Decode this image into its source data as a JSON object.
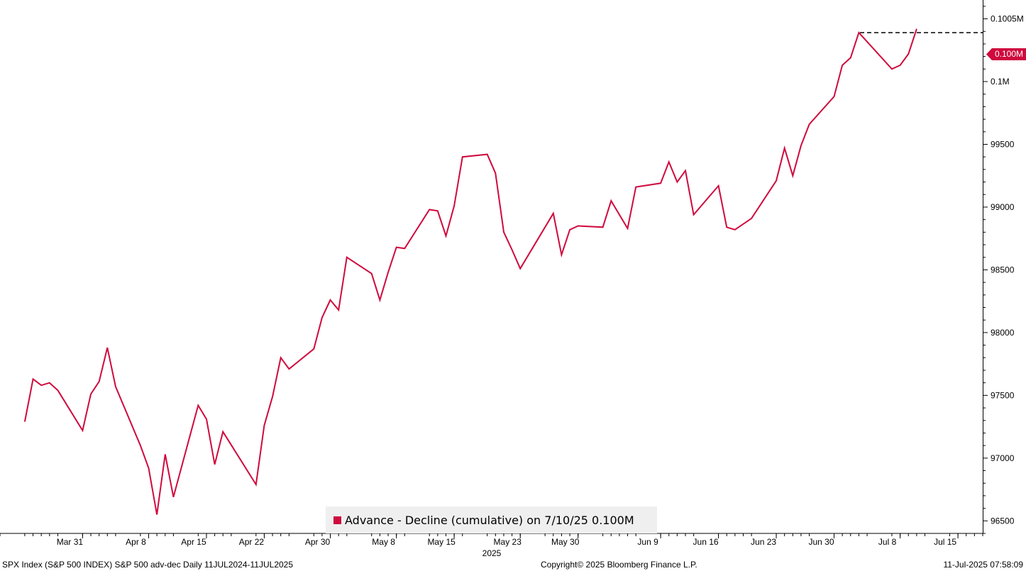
{
  "chart_data": {
    "type": "line",
    "title": "",
    "xlabel": "",
    "ylabel": "",
    "ylim": [
      96400,
      100650
    ],
    "x_date_range": [
      "2025-03-21",
      "2025-07-18"
    ],
    "year_label": "2025",
    "x_ticks": [
      {
        "label": "Mar 31",
        "date": "2025-03-31"
      },
      {
        "label": "Apr 8",
        "date": "2025-04-08"
      },
      {
        "label": "Apr 15",
        "date": "2025-04-15"
      },
      {
        "label": "Apr 22",
        "date": "2025-04-22"
      },
      {
        "label": "Apr 30",
        "date": "2025-04-30"
      },
      {
        "label": "May 8",
        "date": "2025-05-08"
      },
      {
        "label": "May 15",
        "date": "2025-05-15"
      },
      {
        "label": "May 23",
        "date": "2025-05-23"
      },
      {
        "label": "May 30",
        "date": "2025-05-30"
      },
      {
        "label": "Jun 9",
        "date": "2025-06-09"
      },
      {
        "label": "Jun 16",
        "date": "2025-06-16"
      },
      {
        "label": "Jun 23",
        "date": "2025-06-23"
      },
      {
        "label": "Jun 30",
        "date": "2025-06-30"
      },
      {
        "label": "Jul 8",
        "date": "2025-07-08"
      },
      {
        "label": "Jul 15",
        "date": "2025-07-15"
      }
    ],
    "y_ticks": [
      {
        "label": "96500",
        "value": 96500
      },
      {
        "label": "97000",
        "value": 97000
      },
      {
        "label": "97500",
        "value": 97500
      },
      {
        "label": "98000",
        "value": 98000
      },
      {
        "label": "98500",
        "value": 98500
      },
      {
        "label": "99000",
        "value": 99000
      },
      {
        "label": "99500",
        "value": 99500
      },
      {
        "label": "0.1M",
        "value": 100000
      },
      {
        "label": "0.1005M",
        "value": 100500
      }
    ],
    "series": [
      {
        "name": "Advance - Decline (cumulative)",
        "color": "#cf0a3d",
        "x": [
          "2025-03-24",
          "2025-03-25",
          "2025-03-26",
          "2025-03-27",
          "2025-03-28",
          "2025-03-31",
          "2025-04-01",
          "2025-04-02",
          "2025-04-03",
          "2025-04-04",
          "2025-04-07",
          "2025-04-08",
          "2025-04-09",
          "2025-04-10",
          "2025-04-11",
          "2025-04-14",
          "2025-04-15",
          "2025-04-16",
          "2025-04-17",
          "2025-04-21",
          "2025-04-22",
          "2025-04-23",
          "2025-04-24",
          "2025-04-25",
          "2025-04-28",
          "2025-04-29",
          "2025-04-30",
          "2025-05-01",
          "2025-05-02",
          "2025-05-05",
          "2025-05-06",
          "2025-05-07",
          "2025-05-08",
          "2025-05-09",
          "2025-05-12",
          "2025-05-13",
          "2025-05-14",
          "2025-05-15",
          "2025-05-16",
          "2025-05-19",
          "2025-05-20",
          "2025-05-21",
          "2025-05-22",
          "2025-05-23",
          "2025-05-27",
          "2025-05-28",
          "2025-05-29",
          "2025-05-30",
          "2025-06-02",
          "2025-06-03",
          "2025-06-04",
          "2025-06-05",
          "2025-06-06",
          "2025-06-09",
          "2025-06-10",
          "2025-06-11",
          "2025-06-12",
          "2025-06-13",
          "2025-06-16",
          "2025-06-17",
          "2025-06-18",
          "2025-06-20",
          "2025-06-23",
          "2025-06-24",
          "2025-06-25",
          "2025-06-26",
          "2025-06-27",
          "2025-06-30",
          "2025-07-01",
          "2025-07-02",
          "2025-07-03",
          "2025-07-07",
          "2025-07-08",
          "2025-07-09",
          "2025-07-10"
        ],
        "values": [
          97290,
          97630,
          97580,
          97600,
          97540,
          97220,
          97510,
          97610,
          97880,
          97570,
          97100,
          96920,
          96550,
          97030,
          96690,
          97420,
          97310,
          96950,
          97210,
          96790,
          97260,
          97490,
          97800,
          97710,
          97870,
          98120,
          98260,
          98180,
          98600,
          98470,
          98260,
          98480,
          98680,
          98670,
          98980,
          98970,
          98770,
          99010,
          99400,
          99420,
          99270,
          98800,
          98660,
          98510,
          98950,
          98620,
          98820,
          98850,
          98840,
          99050,
          98940,
          98830,
          99160,
          99190,
          99360,
          99200,
          99290,
          98940,
          99170,
          98840,
          98820,
          98910,
          99210,
          99470,
          99250,
          99490,
          99660,
          99880,
          100130,
          100190,
          100390,
          100100,
          100130,
          100220,
          100420
        ]
      }
    ],
    "reference_line": {
      "value": 100390,
      "style": "dashed",
      "color": "#000000"
    },
    "last_value_label": "0.100M",
    "legend": {
      "placement": "bottom-center",
      "text": "Advance - Decline (cumulative) on 7/10/25 0.100M"
    },
    "grid": false
  },
  "footer": {
    "left": "SPX Index (S&P 500 INDEX) S&P 500 adv-dec  Daily 11JUL2024-11JUL2025",
    "center": "Copyright© 2025 Bloomberg Finance L.P.",
    "right": "11-Jul-2025 07:58:09"
  }
}
